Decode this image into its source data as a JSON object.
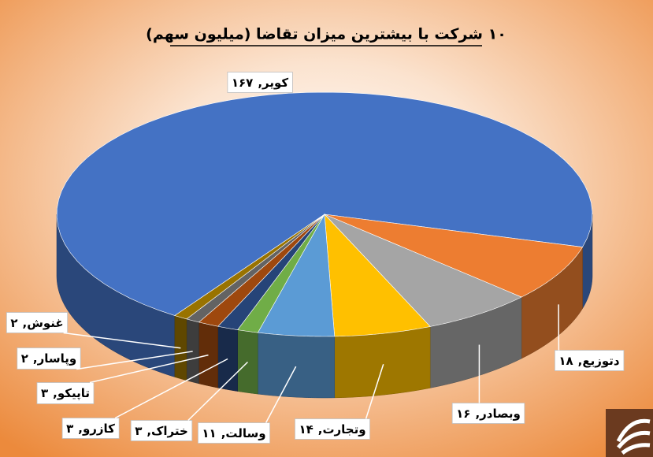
{
  "chart_data": {
    "type": "pie3d",
    "title": "۱۰ شرکت با بیشترین میزان تقاضا (میلیون سهم)",
    "categories": [
      "کویر",
      "دتوزیع",
      "وبصادر",
      "وتجارت",
      "وسالت",
      "ختراک",
      "کازرو",
      "تاپیکو",
      "وپاسار",
      "غنوش"
    ],
    "values": [
      167,
      18,
      16,
      14,
      11,
      3,
      3,
      3,
      2,
      2
    ],
    "value_labels": [
      "۱۶۷",
      "۱۸",
      "۱۶",
      "۱۴",
      "۱۱",
      "۳",
      "۳",
      "۳",
      "۲",
      "۲"
    ],
    "label_separator": ",",
    "colors": [
      "#4472c4",
      "#ed7d31",
      "#a5a5a5",
      "#ffc000",
      "#5b9bd5",
      "#70ad47",
      "#264478",
      "#9e480e",
      "#636363",
      "#997300"
    ]
  }
}
